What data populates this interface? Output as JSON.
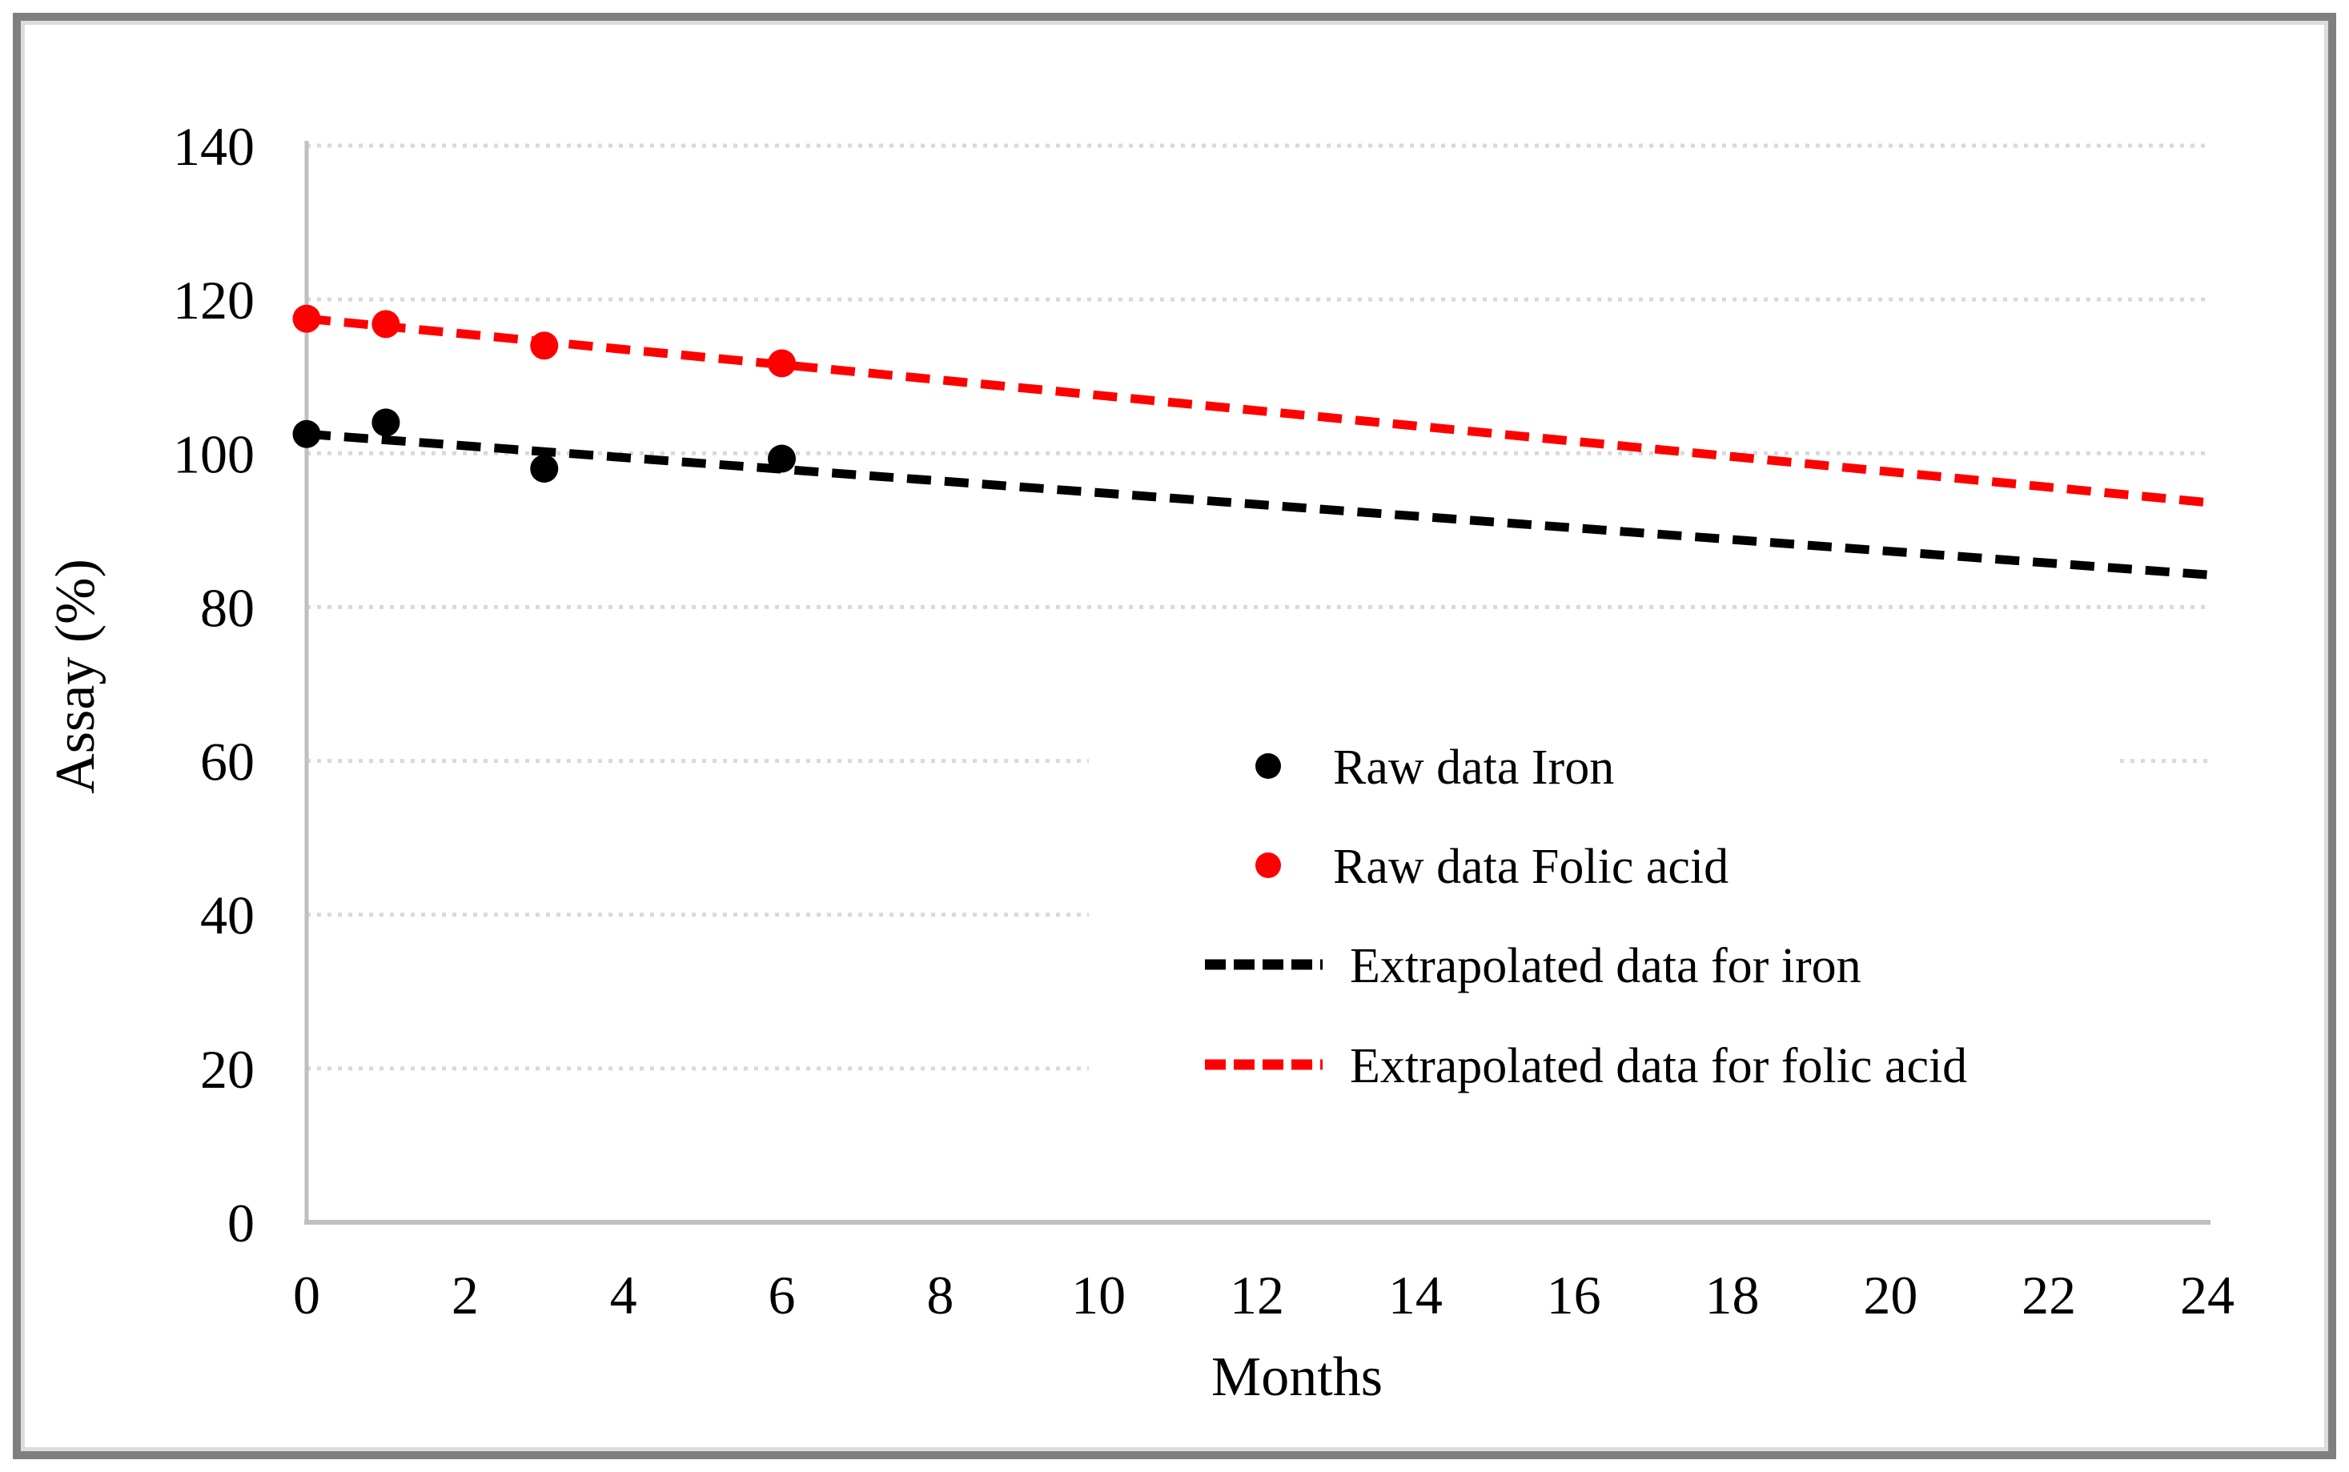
{
  "chart_data": {
    "type": "scatter",
    "title": "",
    "xlabel": "Months",
    "ylabel": "Assay (%)",
    "xlim": [
      0,
      24
    ],
    "ylim": [
      0,
      140
    ],
    "x_ticks": [
      0,
      2,
      4,
      6,
      8,
      10,
      12,
      14,
      16,
      18,
      20,
      22,
      24
    ],
    "y_ticks": [
      0,
      20,
      40,
      60,
      80,
      100,
      120,
      140
    ],
    "grid": "horizontal dotted gridlines",
    "legend_position": "center-right overlay on plot area",
    "series": [
      {
        "name": "Raw data Iron",
        "type": "scatter",
        "color": "#000000",
        "points": [
          [
            0,
            102.5
          ],
          [
            1,
            104
          ],
          [
            3,
            98
          ],
          [
            6,
            99.3
          ]
        ]
      },
      {
        "name": "Raw data Folic acid",
        "type": "scatter",
        "color": "#ff0000",
        "points": [
          [
            0,
            117.5
          ],
          [
            1,
            116.8
          ],
          [
            3,
            114
          ],
          [
            6,
            111.7
          ]
        ]
      },
      {
        "name": "Extrapolated data for iron",
        "type": "dashed-trendline",
        "color": "#000000",
        "points": [
          [
            0,
            102.5
          ],
          [
            24,
            84.2
          ]
        ]
      },
      {
        "name": "Extrapolated data for folic acid",
        "type": "dashed-trendline",
        "color": "#ff0000",
        "points": [
          [
            0,
            117.5
          ],
          [
            24,
            93.6
          ]
        ]
      }
    ]
  },
  "colors": {
    "background": "#ffffff",
    "axis": "#bfbfbf",
    "gridline": "#d9d9d9",
    "frame_outer": "#7f7f7f",
    "frame_inner": "#dcdcdc",
    "iron": "#000000",
    "folic_acid": "#ff0000"
  }
}
